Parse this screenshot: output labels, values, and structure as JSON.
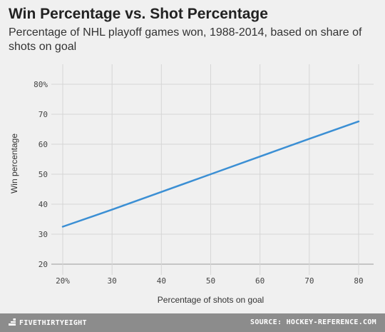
{
  "chart_data": {
    "type": "line",
    "title": "Win Percentage vs. Shot Percentage",
    "subtitle": "Percentage of NHL playoff games won, 1988-2014, based on share of shots on goal",
    "xlabel": "Percentage of shots on goal",
    "ylabel": "Win percentage",
    "xlim": [
      20,
      80
    ],
    "ylim": [
      20,
      80
    ],
    "x_ticks": [
      {
        "value": 20,
        "label": "20%"
      },
      {
        "value": 30,
        "label": "30"
      },
      {
        "value": 40,
        "label": "40"
      },
      {
        "value": 50,
        "label": "50"
      },
      {
        "value": 60,
        "label": "60"
      },
      {
        "value": 70,
        "label": "70"
      },
      {
        "value": 80,
        "label": "80"
      }
    ],
    "y_ticks": [
      {
        "value": 20,
        "label": "20"
      },
      {
        "value": 30,
        "label": "30"
      },
      {
        "value": 40,
        "label": "40"
      },
      {
        "value": 50,
        "label": "50"
      },
      {
        "value": 60,
        "label": "60"
      },
      {
        "value": 70,
        "label": "70"
      },
      {
        "value": 80,
        "label": "80%"
      }
    ],
    "grid": true,
    "series": [
      {
        "color": "#3b8fd4",
        "x": [
          20,
          30,
          40,
          50,
          60,
          70,
          80
        ],
        "y": [
          32.5,
          38.2,
          44.1,
          50.0,
          55.9,
          61.8,
          67.6
        ]
      }
    ]
  },
  "footer": {
    "brand": "FIVETHIRTYEIGHT",
    "source": "SOURCE: HOCKEY-REFERENCE.COM"
  }
}
